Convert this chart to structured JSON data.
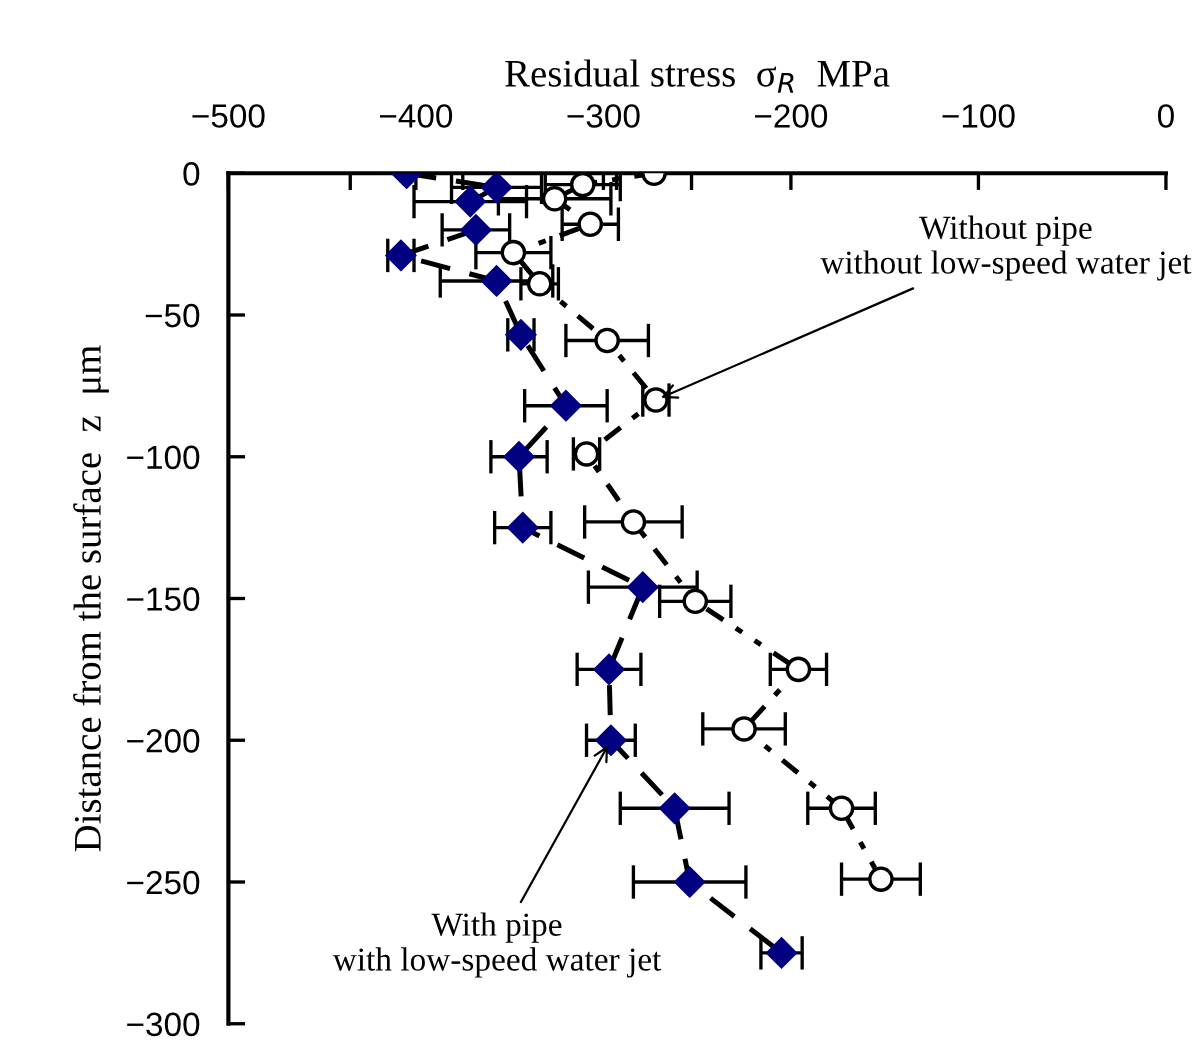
{
  "chart_data": {
    "type": "line",
    "xlabel": "Residual stress  σ$_{R}$  MPa",
    "ylabel": "Distance from the surface  z  μm",
    "xlim": [
      -500,
      0
    ],
    "ylim": [
      -300,
      0
    ],
    "xticks": [
      {
        "value": -500,
        "label": "−500"
      },
      {
        "value": -400,
        "label": "−400"
      },
      {
        "value": -300,
        "label": "−300"
      },
      {
        "value": -200,
        "label": "−200"
      },
      {
        "value": -100,
        "label": "−100"
      },
      0
    ],
    "yticks": [
      0,
      {
        "value": -50,
        "label": "−50"
      },
      {
        "value": -100,
        "label": "−100"
      },
      {
        "value": -150,
        "label": "−150"
      },
      {
        "value": -200,
        "label": "−200"
      },
      {
        "value": -250,
        "label": "−250"
      },
      {
        "value": -300,
        "label": "−300"
      }
    ],
    "grid": false,
    "series": [
      {
        "color": "#000080",
        "marker": "diamond",
        "line_style": "dashed",
        "x": [
          -405,
          -357,
          -371,
          -368,
          -408,
          -357,
          -344,
          -320,
          -345,
          -343,
          -279,
          -297,
          -296,
          -262,
          -254,
          -205
        ],
        "values": [
          0,
          -5,
          -10,
          -20,
          -29,
          -38,
          -57,
          -82,
          -100,
          -125,
          -146,
          -175,
          -200,
          -224,
          -250,
          -275
        ],
        "xerrors": [
          30,
          24,
          30,
          18,
          7,
          30,
          7,
          22,
          15,
          15,
          29,
          17,
          13,
          29,
          30,
          11
        ]
      },
      {
        "color": "#000000",
        "marker": "circle",
        "line_style": "dotted",
        "x": [
          -273,
          -311,
          -326,
          -307,
          -348,
          -334,
          -298,
          -272,
          -309,
          -284,
          -251,
          -196,
          -225,
          -173,
          -152
        ],
        "values": [
          0,
          -4,
          -9,
          -18,
          -28,
          -39,
          -59,
          -80,
          -99,
          -123,
          -151,
          -175,
          -196,
          -224,
          -249
        ],
        "xerrors": [
          20,
          20,
          30,
          15,
          20,
          10,
          22,
          7,
          7,
          26,
          19,
          15,
          22,
          18,
          21
        ]
      }
    ],
    "annotations": [
      {
        "text": "Without pipe\nwithout low-speed water jet",
        "x": -272,
        "y": -80
      },
      {
        "text": "With pipe\nwith low-speed water jet",
        "x": -296,
        "y": -200
      }
    ]
  }
}
